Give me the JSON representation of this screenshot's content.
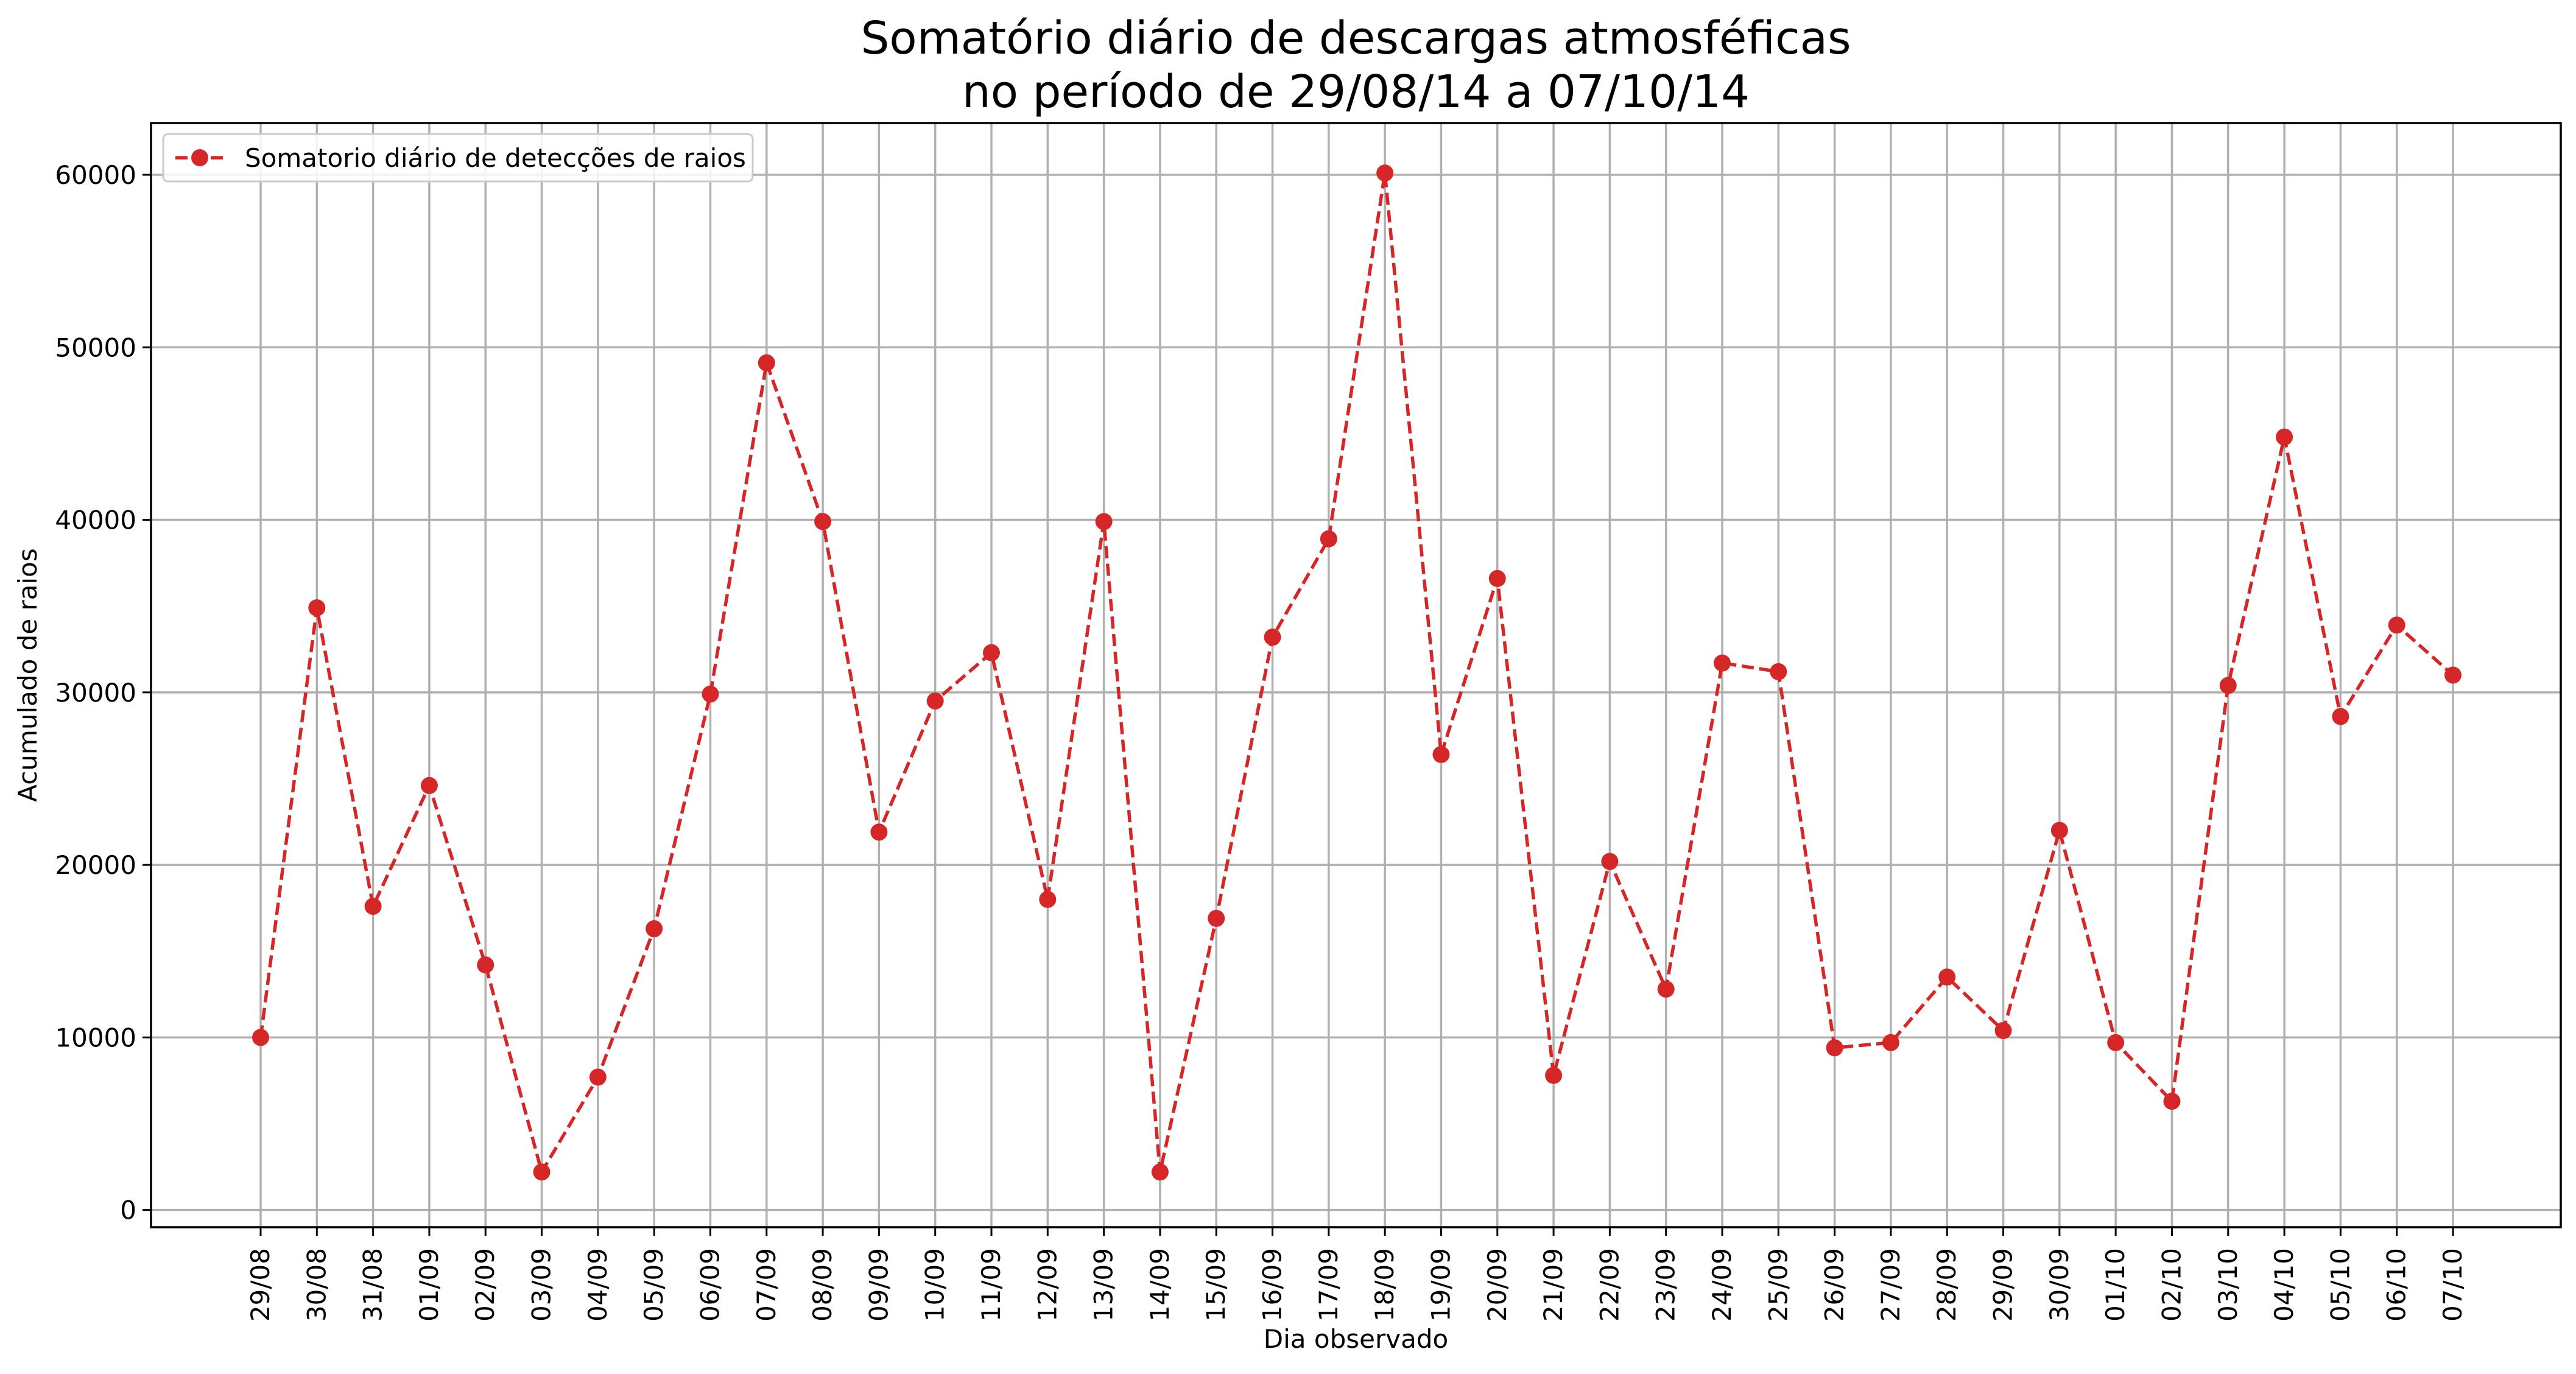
{
  "chart_data": {
    "type": "line",
    "title": "Somatório diário de descargas atmosféficas\nno período de 29/08/14 a 07/10/14",
    "xlabel": "Dia observado",
    "ylabel": "Acumulado de raios",
    "ylim": [
      -1000,
      63000
    ],
    "yticks": [
      0,
      10000,
      20000,
      30000,
      40000,
      50000,
      60000
    ],
    "grid": true,
    "legend_position": "top-left",
    "categories": [
      "29/08",
      "30/08",
      "31/08",
      "01/09",
      "02/09",
      "03/09",
      "04/09",
      "05/09",
      "06/09",
      "07/09",
      "08/09",
      "09/09",
      "10/09",
      "11/09",
      "12/09",
      "13/09",
      "14/09",
      "15/09",
      "16/09",
      "17/09",
      "18/09",
      "19/09",
      "20/09",
      "21/09",
      "22/09",
      "23/09",
      "24/09",
      "25/09",
      "26/09",
      "27/09",
      "28/09",
      "29/09",
      "30/09",
      "01/10",
      "02/10",
      "03/10",
      "04/10",
      "05/10",
      "06/10",
      "07/10"
    ],
    "series": [
      {
        "name": "Somatorio diário de detecções de raios",
        "color": "#d62728",
        "line_style": "dashed",
        "marker": "circle",
        "values": [
          10000,
          34900,
          17600,
          24600,
          14200,
          2200,
          7700,
          16300,
          29900,
          49100,
          39900,
          21900,
          29500,
          32300,
          18000,
          39900,
          2200,
          16900,
          33200,
          38900,
          60100,
          26400,
          36600,
          7800,
          20200,
          12800,
          31700,
          31200,
          9400,
          9700,
          13500,
          10400,
          22000,
          9700,
          6300,
          30400,
          44800,
          28600,
          33900,
          31000
        ]
      }
    ]
  }
}
